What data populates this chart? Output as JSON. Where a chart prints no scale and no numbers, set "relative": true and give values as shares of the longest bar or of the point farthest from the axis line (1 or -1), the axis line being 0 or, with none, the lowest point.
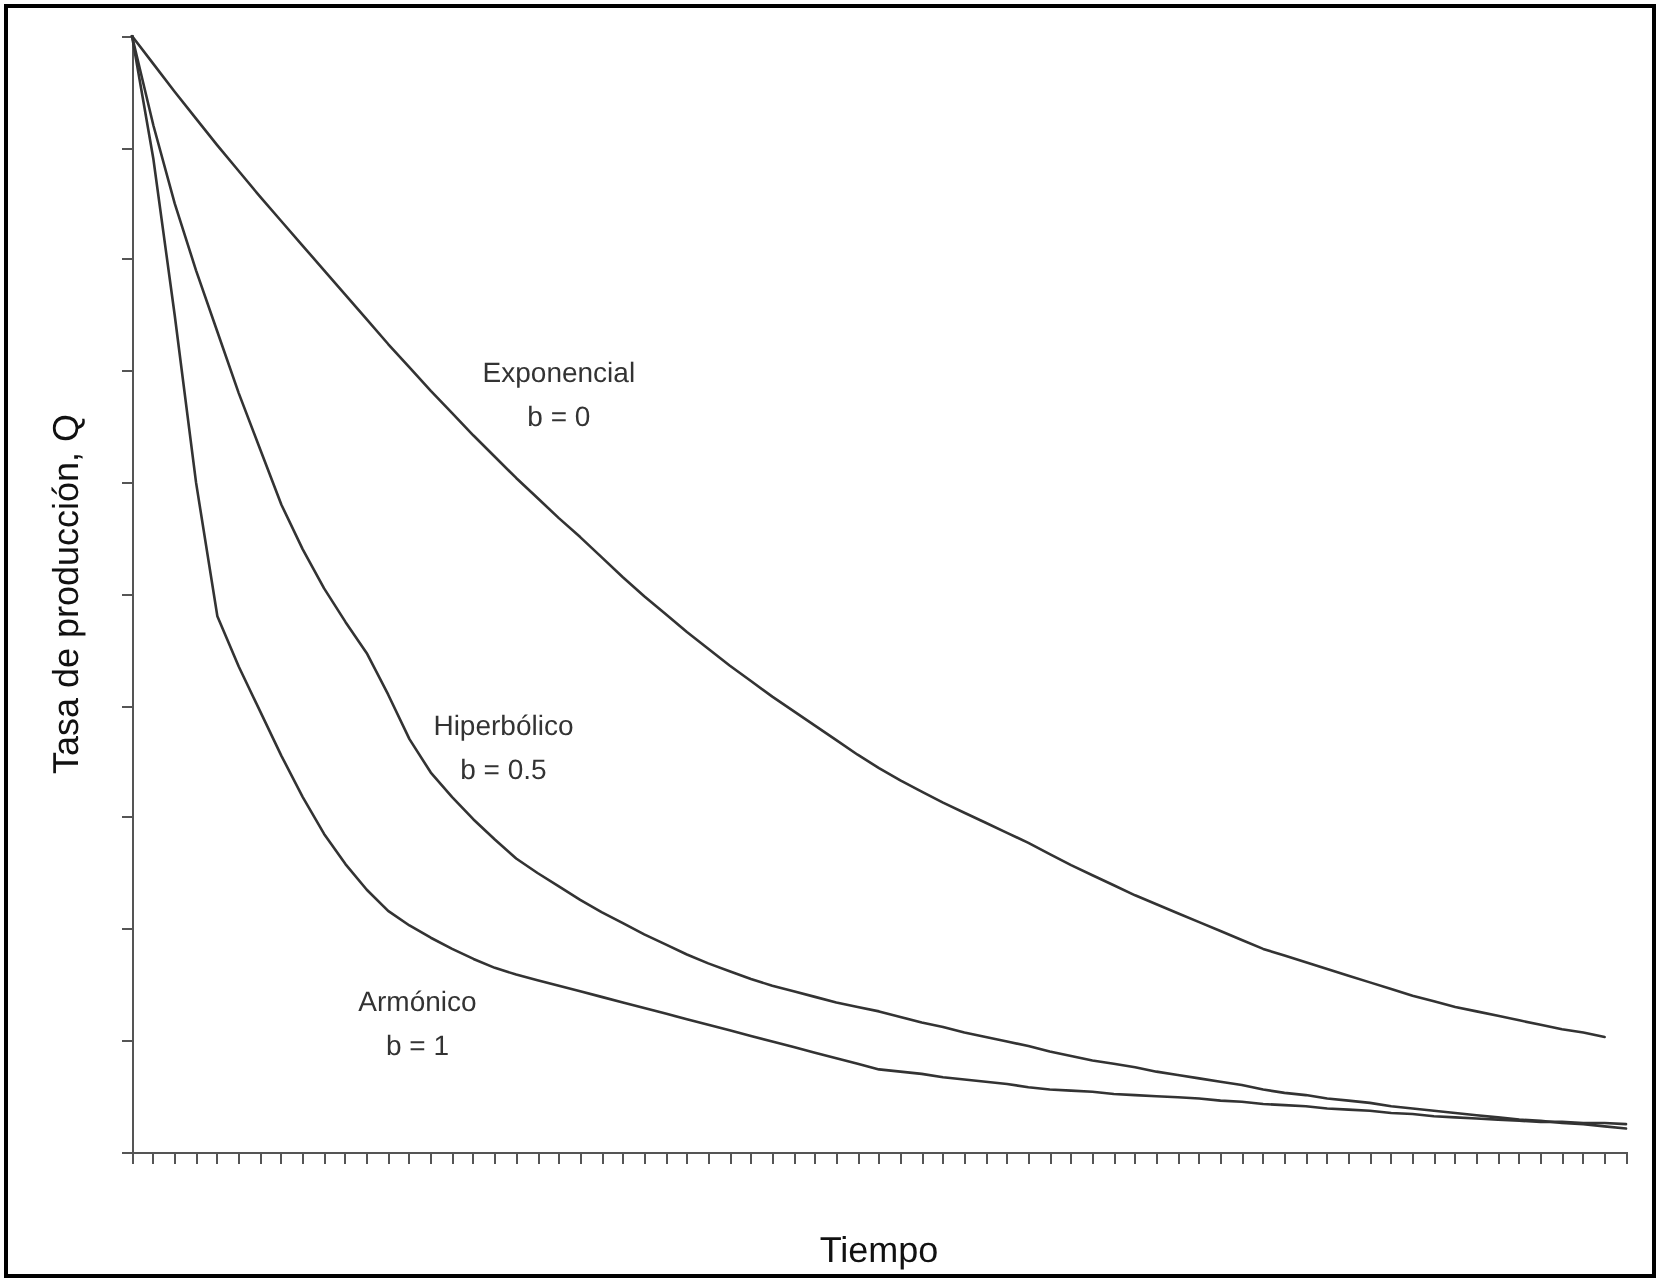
{
  "chart_data": {
    "type": "line",
    "relative": true,
    "xlabel": "Tiempo",
    "ylabel": "Tasa de producción, Q",
    "marker": "none",
    "line_style": "solid",
    "grid": false,
    "legend": false,
    "categories": [
      null,
      null,
      null,
      null,
      null,
      null,
      null,
      null,
      null,
      null,
      null,
      null,
      null,
      null,
      null,
      null,
      null,
      null,
      null,
      null,
      null,
      null,
      null,
      null,
      null,
      null,
      null,
      null,
      null,
      null,
      null,
      null,
      null,
      null,
      null,
      null,
      null,
      null,
      null,
      null,
      null,
      null,
      null,
      null,
      null,
      null,
      null,
      null,
      null,
      null,
      null,
      null,
      null,
      null,
      null,
      null,
      null,
      null,
      null,
      null,
      null,
      null,
      null,
      null,
      null,
      null,
      null,
      null,
      null,
      null,
      null
    ],
    "series": [
      {
        "name": "Exponencial\nb = 0",
        "color": "#333333",
        "values": [
          1.0,
          0.975,
          0.95,
          0.926,
          0.902,
          0.879,
          0.856,
          0.834,
          0.812,
          0.79,
          0.768,
          0.746,
          0.724,
          0.703,
          0.682,
          0.662,
          0.642,
          0.623,
          0.604,
          0.586,
          0.568,
          0.551,
          0.533,
          0.515,
          0.498,
          0.482,
          0.466,
          0.451,
          0.436,
          0.422,
          0.408,
          0.395,
          0.382,
          0.369,
          0.356,
          0.344,
          0.333,
          0.323,
          0.313,
          0.304,
          0.295,
          0.286,
          0.277,
          0.267,
          0.257,
          0.248,
          0.239,
          0.23,
          0.222,
          0.214,
          0.206,
          0.198,
          0.19,
          0.182,
          0.176,
          0.17,
          0.164,
          0.158,
          0.152,
          0.146,
          0.14,
          0.135,
          0.13,
          0.126,
          0.122,
          0.118,
          0.114,
          0.11,
          0.107,
          0.103,
          null
        ]
      },
      {
        "name": "Hiperbólico\nb = 0.5",
        "color": "#333333",
        "values": [
          1.0,
          0.92,
          0.85,
          0.79,
          0.735,
          0.68,
          0.63,
          0.58,
          0.54,
          0.505,
          0.475,
          0.447,
          0.41,
          0.37,
          0.34,
          0.318,
          0.298,
          0.28,
          0.263,
          0.25,
          0.238,
          0.226,
          0.215,
          0.205,
          0.195,
          0.186,
          0.177,
          0.169,
          0.162,
          0.155,
          0.149,
          0.144,
          0.139,
          0.134,
          0.13,
          0.126,
          0.121,
          0.116,
          0.112,
          0.107,
          0.103,
          0.099,
          0.095,
          0.09,
          0.086,
          0.082,
          0.079,
          0.076,
          0.072,
          0.069,
          0.066,
          0.063,
          0.06,
          0.056,
          0.053,
          0.051,
          0.048,
          0.046,
          0.044,
          0.041,
          0.039,
          0.037,
          0.035,
          0.033,
          0.031,
          0.029,
          0.028,
          0.026,
          0.025,
          0.023,
          0.021
        ]
      },
      {
        "name": "Armónico\nb = 1",
        "color": "#333333",
        "values": [
          1.0,
          0.89,
          0.75,
          0.6,
          0.48,
          0.435,
          0.395,
          0.355,
          0.318,
          0.285,
          0.258,
          0.235,
          0.216,
          0.203,
          0.192,
          0.182,
          0.173,
          0.165,
          0.159,
          0.154,
          0.149,
          0.144,
          0.139,
          0.134,
          0.129,
          0.124,
          0.119,
          0.114,
          0.109,
          0.104,
          0.099,
          0.094,
          0.089,
          0.084,
          0.079,
          0.074,
          0.072,
          0.07,
          0.067,
          0.065,
          0.063,
          0.061,
          0.058,
          0.056,
          0.055,
          0.054,
          0.052,
          0.051,
          0.05,
          0.049,
          0.048,
          0.046,
          0.045,
          0.043,
          0.042,
          0.041,
          0.039,
          0.038,
          0.037,
          0.035,
          0.034,
          0.032,
          0.031,
          0.03,
          0.029,
          0.028,
          0.027,
          0.027,
          0.026,
          0.026,
          0.025
        ]
      }
    ]
  }
}
